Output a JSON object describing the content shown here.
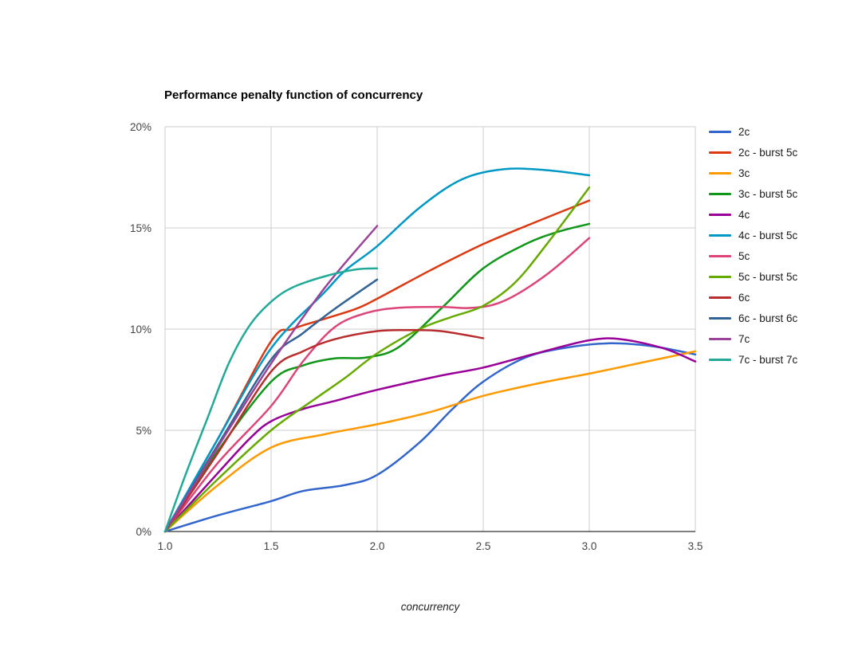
{
  "chart_data": {
    "type": "line",
    "title": "Performance penalty function of concurrency",
    "xlabel": "concurrency",
    "ylabel": "",
    "xlim": [
      1.0,
      3.5
    ],
    "ylim": [
      0,
      20
    ],
    "x_ticks": [
      "1.0",
      "1.5",
      "2.0",
      "2.5",
      "3.0",
      "3.5"
    ],
    "y_ticks": [
      "0%",
      "5%",
      "10%",
      "15%",
      "20%"
    ],
    "grid": true,
    "legend_position": "right",
    "y_unit": "percent",
    "series": [
      {
        "name": "2c",
        "color": "#3366cc",
        "points": [
          [
            1,
            0
          ],
          [
            1.25,
            0.8
          ],
          [
            1.5,
            1.5
          ],
          [
            1.65,
            2.0
          ],
          [
            1.85,
            2.3
          ],
          [
            2,
            2.8
          ],
          [
            2.2,
            4.4
          ],
          [
            2.35,
            6.0
          ],
          [
            2.5,
            7.4
          ],
          [
            2.7,
            8.6
          ],
          [
            2.9,
            9.1
          ],
          [
            3.1,
            9.3
          ],
          [
            3.3,
            9.15
          ],
          [
            3.5,
            8.75
          ]
        ]
      },
      {
        "name": "2c - burst 5c",
        "color": "#dc3912",
        "points": [
          [
            1,
            0
          ],
          [
            1.25,
            4.6
          ],
          [
            1.5,
            9.4
          ],
          [
            1.6,
            10.0
          ],
          [
            1.75,
            10.5
          ],
          [
            1.9,
            11.0
          ],
          [
            2,
            11.5
          ],
          [
            2.25,
            12.9
          ],
          [
            2.5,
            14.2
          ],
          [
            2.75,
            15.3
          ],
          [
            3,
            16.35
          ]
        ]
      },
      {
        "name": "3c",
        "color": "#ff9900",
        "points": [
          [
            1,
            0
          ],
          [
            1.25,
            2.3
          ],
          [
            1.5,
            4.15
          ],
          [
            1.75,
            4.8
          ],
          [
            2,
            5.3
          ],
          [
            2.25,
            5.9
          ],
          [
            2.5,
            6.7
          ],
          [
            2.75,
            7.3
          ],
          [
            3,
            7.8
          ],
          [
            3.25,
            8.35
          ],
          [
            3.5,
            8.9
          ]
        ]
      },
      {
        "name": "3c - burst 5c",
        "color": "#109618",
        "points": [
          [
            1,
            0
          ],
          [
            1.25,
            4.0
          ],
          [
            1.5,
            7.4
          ],
          [
            1.65,
            8.2
          ],
          [
            1.8,
            8.55
          ],
          [
            1.95,
            8.6
          ],
          [
            2.1,
            9.1
          ],
          [
            2.3,
            11.0
          ],
          [
            2.5,
            13.0
          ],
          [
            2.7,
            14.2
          ],
          [
            2.85,
            14.8
          ],
          [
            3,
            15.2
          ]
        ]
      },
      {
        "name": "4c",
        "color": "#990099",
        "points": [
          [
            1,
            0
          ],
          [
            1.25,
            2.9
          ],
          [
            1.4,
            4.6
          ],
          [
            1.5,
            5.45
          ],
          [
            1.65,
            6.05
          ],
          [
            1.8,
            6.45
          ],
          [
            2,
            7.0
          ],
          [
            2.3,
            7.7
          ],
          [
            2.5,
            8.1
          ],
          [
            2.75,
            8.8
          ],
          [
            3,
            9.45
          ],
          [
            3.15,
            9.5
          ],
          [
            3.35,
            9.05
          ],
          [
            3.5,
            8.4
          ]
        ]
      },
      {
        "name": "4c - burst 5c",
        "color": "#0099c6",
        "points": [
          [
            1,
            0
          ],
          [
            1.25,
            4.6
          ],
          [
            1.5,
            9.05
          ],
          [
            1.75,
            11.8
          ],
          [
            1.85,
            12.9
          ],
          [
            2,
            14.1
          ],
          [
            2.2,
            16.0
          ],
          [
            2.4,
            17.4
          ],
          [
            2.6,
            17.9
          ],
          [
            2.8,
            17.85
          ],
          [
            3,
            17.6
          ]
        ]
      },
      {
        "name": "5c",
        "color": "#dd4477",
        "points": [
          [
            1,
            0
          ],
          [
            1.25,
            3.4
          ],
          [
            1.5,
            6.2
          ],
          [
            1.65,
            8.4
          ],
          [
            1.8,
            10.1
          ],
          [
            1.95,
            10.8
          ],
          [
            2.1,
            11.05
          ],
          [
            2.3,
            11.1
          ],
          [
            2.45,
            11.05
          ],
          [
            2.6,
            11.4
          ],
          [
            2.8,
            12.7
          ],
          [
            3,
            14.5
          ]
        ]
      },
      {
        "name": "5c - burst 5c",
        "color": "#66aa00",
        "points": [
          [
            1,
            0
          ],
          [
            1.25,
            2.6
          ],
          [
            1.5,
            5.0
          ],
          [
            1.7,
            6.5
          ],
          [
            1.85,
            7.6
          ],
          [
            2,
            8.8
          ],
          [
            2.2,
            10.0
          ],
          [
            2.35,
            10.6
          ],
          [
            2.5,
            11.15
          ],
          [
            2.65,
            12.3
          ],
          [
            2.8,
            14.2
          ],
          [
            3,
            17.0
          ]
        ]
      },
      {
        "name": "6c",
        "color": "#b82e2e",
        "points": [
          [
            1,
            0
          ],
          [
            1.25,
            3.9
          ],
          [
            1.5,
            7.9
          ],
          [
            1.65,
            8.9
          ],
          [
            1.8,
            9.5
          ],
          [
            2,
            9.9
          ],
          [
            2.15,
            9.95
          ],
          [
            2.3,
            9.9
          ],
          [
            2.5,
            9.55
          ]
        ]
      },
      {
        "name": "6c - burst 6c",
        "color": "#316395",
        "points": [
          [
            1,
            0
          ],
          [
            1.25,
            4.3
          ],
          [
            1.5,
            8.5
          ],
          [
            1.65,
            9.8
          ],
          [
            1.8,
            11.0
          ],
          [
            2,
            12.45
          ]
        ]
      },
      {
        "name": "7c",
        "color": "#994499",
        "points": [
          [
            1,
            0
          ],
          [
            1.25,
            4.2
          ],
          [
            1.5,
            8.3
          ],
          [
            1.75,
            12.0
          ],
          [
            2,
            15.1
          ]
        ]
      },
      {
        "name": "7c - burst 7c",
        "color": "#22aa99",
        "points": [
          [
            1,
            0
          ],
          [
            1.1,
            2.9
          ],
          [
            1.2,
            5.6
          ],
          [
            1.3,
            8.3
          ],
          [
            1.4,
            10.2
          ],
          [
            1.5,
            11.35
          ],
          [
            1.6,
            12.05
          ],
          [
            1.75,
            12.6
          ],
          [
            1.9,
            12.95
          ],
          [
            2,
            13.0
          ]
        ]
      }
    ]
  },
  "style": {
    "grid_color": "#cccccc",
    "axis_color": "#333333",
    "tick_label_color": "#444444",
    "background": "#ffffff",
    "line_width": 2.5
  }
}
